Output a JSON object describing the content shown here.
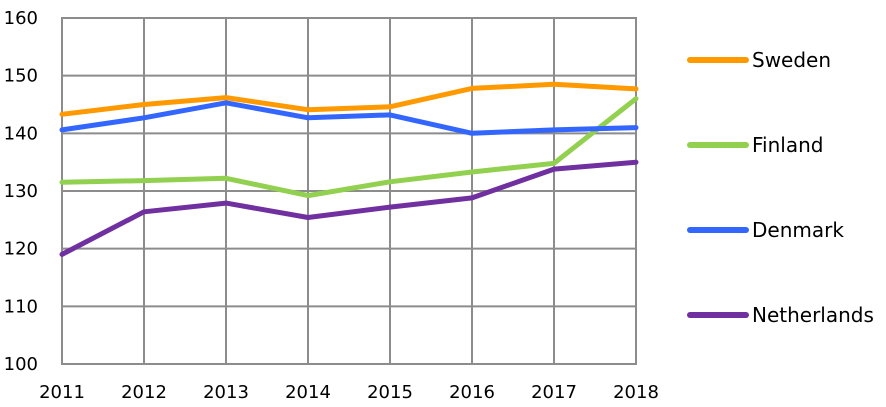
{
  "chart_data": {
    "type": "line",
    "title": "",
    "xlabel": "",
    "ylabel": "",
    "x": [
      "2011",
      "2012",
      "2013",
      "2014",
      "2015",
      "2016",
      "2017",
      "2018"
    ],
    "ylim": [
      100,
      160
    ],
    "yticks": [
      "100",
      "110",
      "120",
      "130",
      "140",
      "150",
      "160"
    ],
    "grid": true,
    "legend_position": "right",
    "series": [
      {
        "name": "Sweden",
        "color": "#FF9900",
        "values": [
          143.3,
          145.0,
          146.2,
          144.1,
          144.6,
          147.8,
          148.5,
          147.7
        ]
      },
      {
        "name": "Finland",
        "color": "#92D050",
        "values": [
          131.5,
          131.8,
          132.2,
          129.2,
          131.6,
          133.3,
          134.8,
          146.0
        ]
      },
      {
        "name": "Denmark",
        "color": "#3366FF",
        "values": [
          140.6,
          142.7,
          145.3,
          142.7,
          143.2,
          140.0,
          140.6,
          141.0
        ]
      },
      {
        "name": "Netherlands",
        "color": "#7030A0",
        "values": [
          119.0,
          126.4,
          127.9,
          125.4,
          127.2,
          128.8,
          133.8,
          135.0
        ]
      }
    ]
  }
}
